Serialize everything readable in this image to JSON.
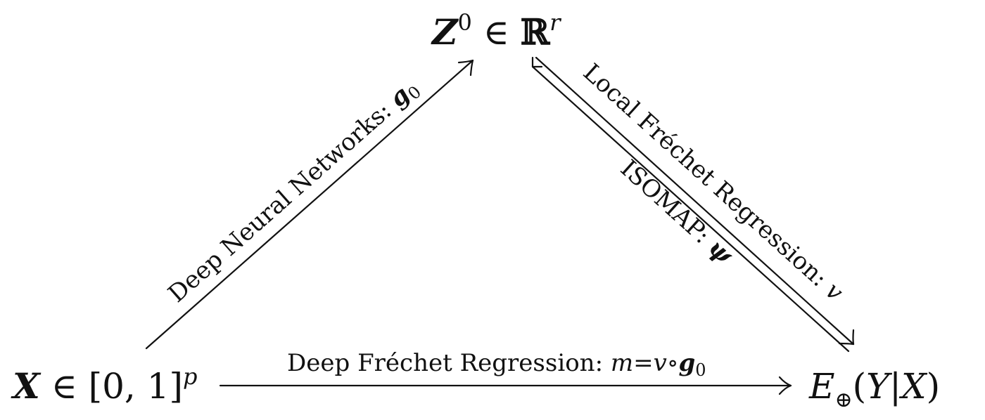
{
  "nodes": {
    "top": {
      "var": "Z",
      "sup": "0",
      "rel": " ∈ ",
      "set": "ℝ",
      "set_sup": "r"
    },
    "left": {
      "var": "X",
      "rel": " ∈ ",
      "set": "[0, 1]",
      "set_sup": "p"
    },
    "right": {
      "op": "E",
      "op_sub": "⊕",
      "paren_open": "(",
      "y": "Y",
      "bar": "|",
      "x": "X",
      "paren_close": ")"
    }
  },
  "edges": {
    "dnn": {
      "text": "Deep Neural Networks: ",
      "sym": "g",
      "sym_sub": "0"
    },
    "lfr": {
      "text": "Local Fréchet Regression: ",
      "sym": "v"
    },
    "isomap": {
      "text": "ISOMAP: ",
      "sym": "ψ"
    },
    "dfr": {
      "text": "Deep Fréchet Regression: ",
      "m": "m",
      "eq": "=",
      "v": "v",
      "compose": "∘",
      "g": "g",
      "g_sub": "0"
    }
  }
}
